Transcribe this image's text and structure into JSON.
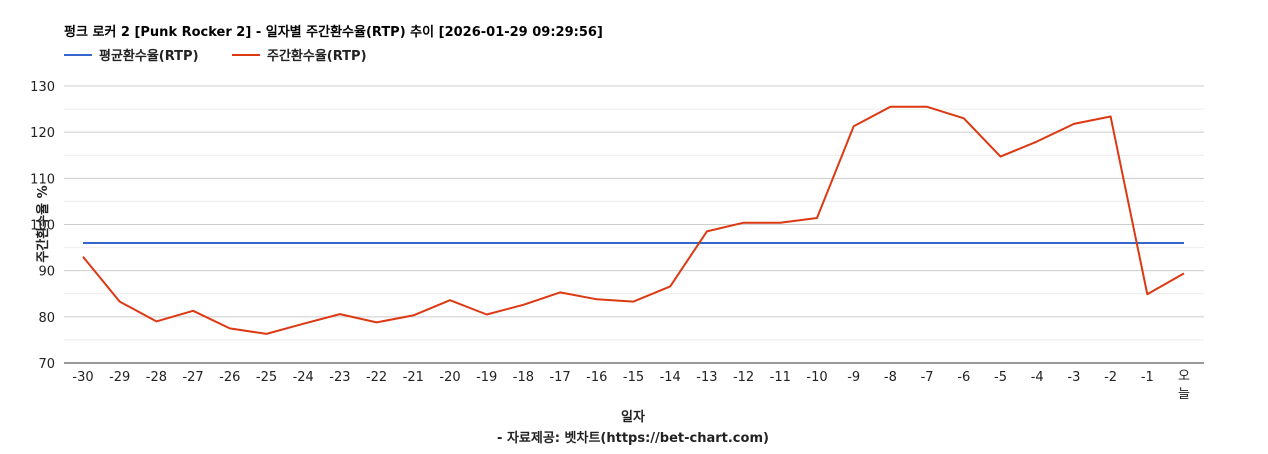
{
  "chart_data": {
    "type": "line",
    "title": "펑크 로커 2 [Punk Rocker 2] - 일자별 주간환수율(RTP) 추이 [2026-01-29 09:29:56]",
    "xlabel": "일자",
    "ylabel": "주간환수율 %",
    "footer": "- 자료제공: 벳차트(https://bet-chart.com)",
    "categories": [
      "-30",
      "-29",
      "-28",
      "-27",
      "-26",
      "-25",
      "-24",
      "-23",
      "-22",
      "-21",
      "-20",
      "-19",
      "-18",
      "-17",
      "-16",
      "-15",
      "-14",
      "-13",
      "-12",
      "-11",
      "-10",
      "-9",
      "-8",
      "-7",
      "-6",
      "-5",
      "-4",
      "-3",
      "-2",
      "-1",
      "오늘"
    ],
    "ylim": [
      70,
      130
    ],
    "yticks": [
      70,
      80,
      90,
      100,
      110,
      120,
      130
    ],
    "grid": true,
    "legend": "top-left",
    "series": [
      {
        "name": "평균환수율(RTP)",
        "color": "#3366cc",
        "values": [
          96,
          96,
          96,
          96,
          96,
          96,
          96,
          96,
          96,
          96,
          96,
          96,
          96,
          96,
          96,
          96,
          96,
          96,
          96,
          96,
          96,
          96,
          96,
          96,
          96,
          96,
          96,
          96,
          96,
          96,
          96
        ]
      },
      {
        "name": "주간환수율(RTP)",
        "color": "#dc3912",
        "values": [
          93.0,
          83.3,
          79.0,
          81.3,
          77.5,
          76.3,
          78.5,
          80.6,
          78.8,
          80.3,
          83.6,
          80.5,
          82.6,
          85.3,
          83.8,
          83.3,
          86.6,
          98.5,
          100.4,
          100.4,
          101.4,
          121.3,
          125.5,
          125.5,
          123.0,
          114.7,
          118.0,
          121.8,
          123.4,
          84.9,
          89.4
        ]
      }
    ]
  }
}
